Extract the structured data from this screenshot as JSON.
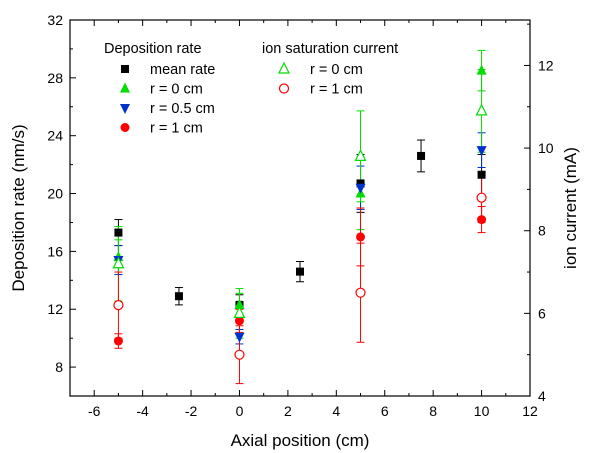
{
  "chart_data": {
    "type": "scatter",
    "xlabel": "Axial position (cm)",
    "ylabel_left": "Deposition rate (nm/s)",
    "ylabel_right": "ion current (mA)",
    "xlim": [
      -7,
      12
    ],
    "ylim_left": [
      6,
      32
    ],
    "ylim_right": [
      4,
      13.1
    ],
    "x_ticks": [
      -6,
      -4,
      -2,
      0,
      2,
      4,
      6,
      8,
      10,
      12
    ],
    "y_left_ticks": [
      8,
      12,
      16,
      20,
      24,
      28,
      32
    ],
    "y_right_ticks": [
      4,
      6,
      8,
      10,
      12
    ],
    "legend_groups": [
      {
        "title": "Deposition rate",
        "entries": [
          "mean rate",
          "r = 0 cm",
          "r = 0.5 cm",
          "r = 1 cm"
        ]
      },
      {
        "title": "ion saturation current",
        "entries": [
          "r = 0 cm",
          "r = 1 cm"
        ]
      }
    ],
    "series": [
      {
        "name": "mean rate",
        "axis": "left",
        "marker": "square-filled",
        "color": "#000000",
        "points": [
          {
            "x": -5,
            "y": 17.3,
            "err": 0.9
          },
          {
            "x": -2.5,
            "y": 12.9,
            "err": 0.6
          },
          {
            "x": 0,
            "y": 12.3,
            "err": 0.7
          },
          {
            "x": 2.5,
            "y": 14.6,
            "err": 0.7
          },
          {
            "x": 5,
            "y": 20.7,
            "err": 2.0
          },
          {
            "x": 7.5,
            "y": 22.6,
            "err": 1.1
          },
          {
            "x": 10,
            "y": 21.3,
            "err": 1.4
          }
        ]
      },
      {
        "name": "r = 0 cm",
        "axis": "left",
        "marker": "triangle-up-filled",
        "color": "#00dd00",
        "points": [
          {
            "x": -5,
            "y": 15.6,
            "err": 1.2
          },
          {
            "x": 0,
            "y": 12.3,
            "err": 0.8
          },
          {
            "x": 5,
            "y": 20.0,
            "err": 2.5
          },
          {
            "x": 10,
            "y": 28.5,
            "err": 1.4
          }
        ]
      },
      {
        "name": "r = 0.5 cm",
        "axis": "left",
        "marker": "triangle-down-filled",
        "color": "#0033cc",
        "points": [
          {
            "x": -5,
            "y": 15.4,
            "err": 1.0
          },
          {
            "x": 0,
            "y": 10.1,
            "err": 0.5
          },
          {
            "x": 5,
            "y": 20.4,
            "err": 1.5
          },
          {
            "x": 10,
            "y": 23.0,
            "err": 1.2
          }
        ]
      },
      {
        "name": "r = 1 cm",
        "axis": "left",
        "marker": "circle-filled",
        "color": "#ff0000",
        "points": [
          {
            "x": -5,
            "y": 9.8,
            "err": 0.5
          },
          {
            "x": 0,
            "y": 11.2,
            "err": 0.8
          },
          {
            "x": 5,
            "y": 17.0,
            "err": 2.0
          },
          {
            "x": 10,
            "y": 18.2,
            "err": 0.9
          }
        ]
      },
      {
        "name": "ion saturation current r = 0 cm",
        "axis": "right",
        "marker": "triangle-up-open",
        "color": "#00dd00",
        "points": [
          {
            "x": -5,
            "y": 7.2,
            "err": 0.9
          },
          {
            "x": 0,
            "y": 6.0,
            "err": 0.6
          },
          {
            "x": 5,
            "y": 9.8,
            "err": 1.1
          },
          {
            "x": 10,
            "y": 10.9,
            "err": 1.0
          }
        ]
      },
      {
        "name": "ion saturation current r = 1 cm",
        "axis": "right",
        "marker": "circle-open",
        "color": "#ff0000",
        "points": [
          {
            "x": -5,
            "y": 6.2,
            "err": 0.8
          },
          {
            "x": 0,
            "y": 5.0,
            "err": 0.7
          },
          {
            "x": 5,
            "y": 6.5,
            "err": 1.2
          },
          {
            "x": 10,
            "y": 8.8,
            "err": 0.6
          }
        ]
      }
    ]
  }
}
